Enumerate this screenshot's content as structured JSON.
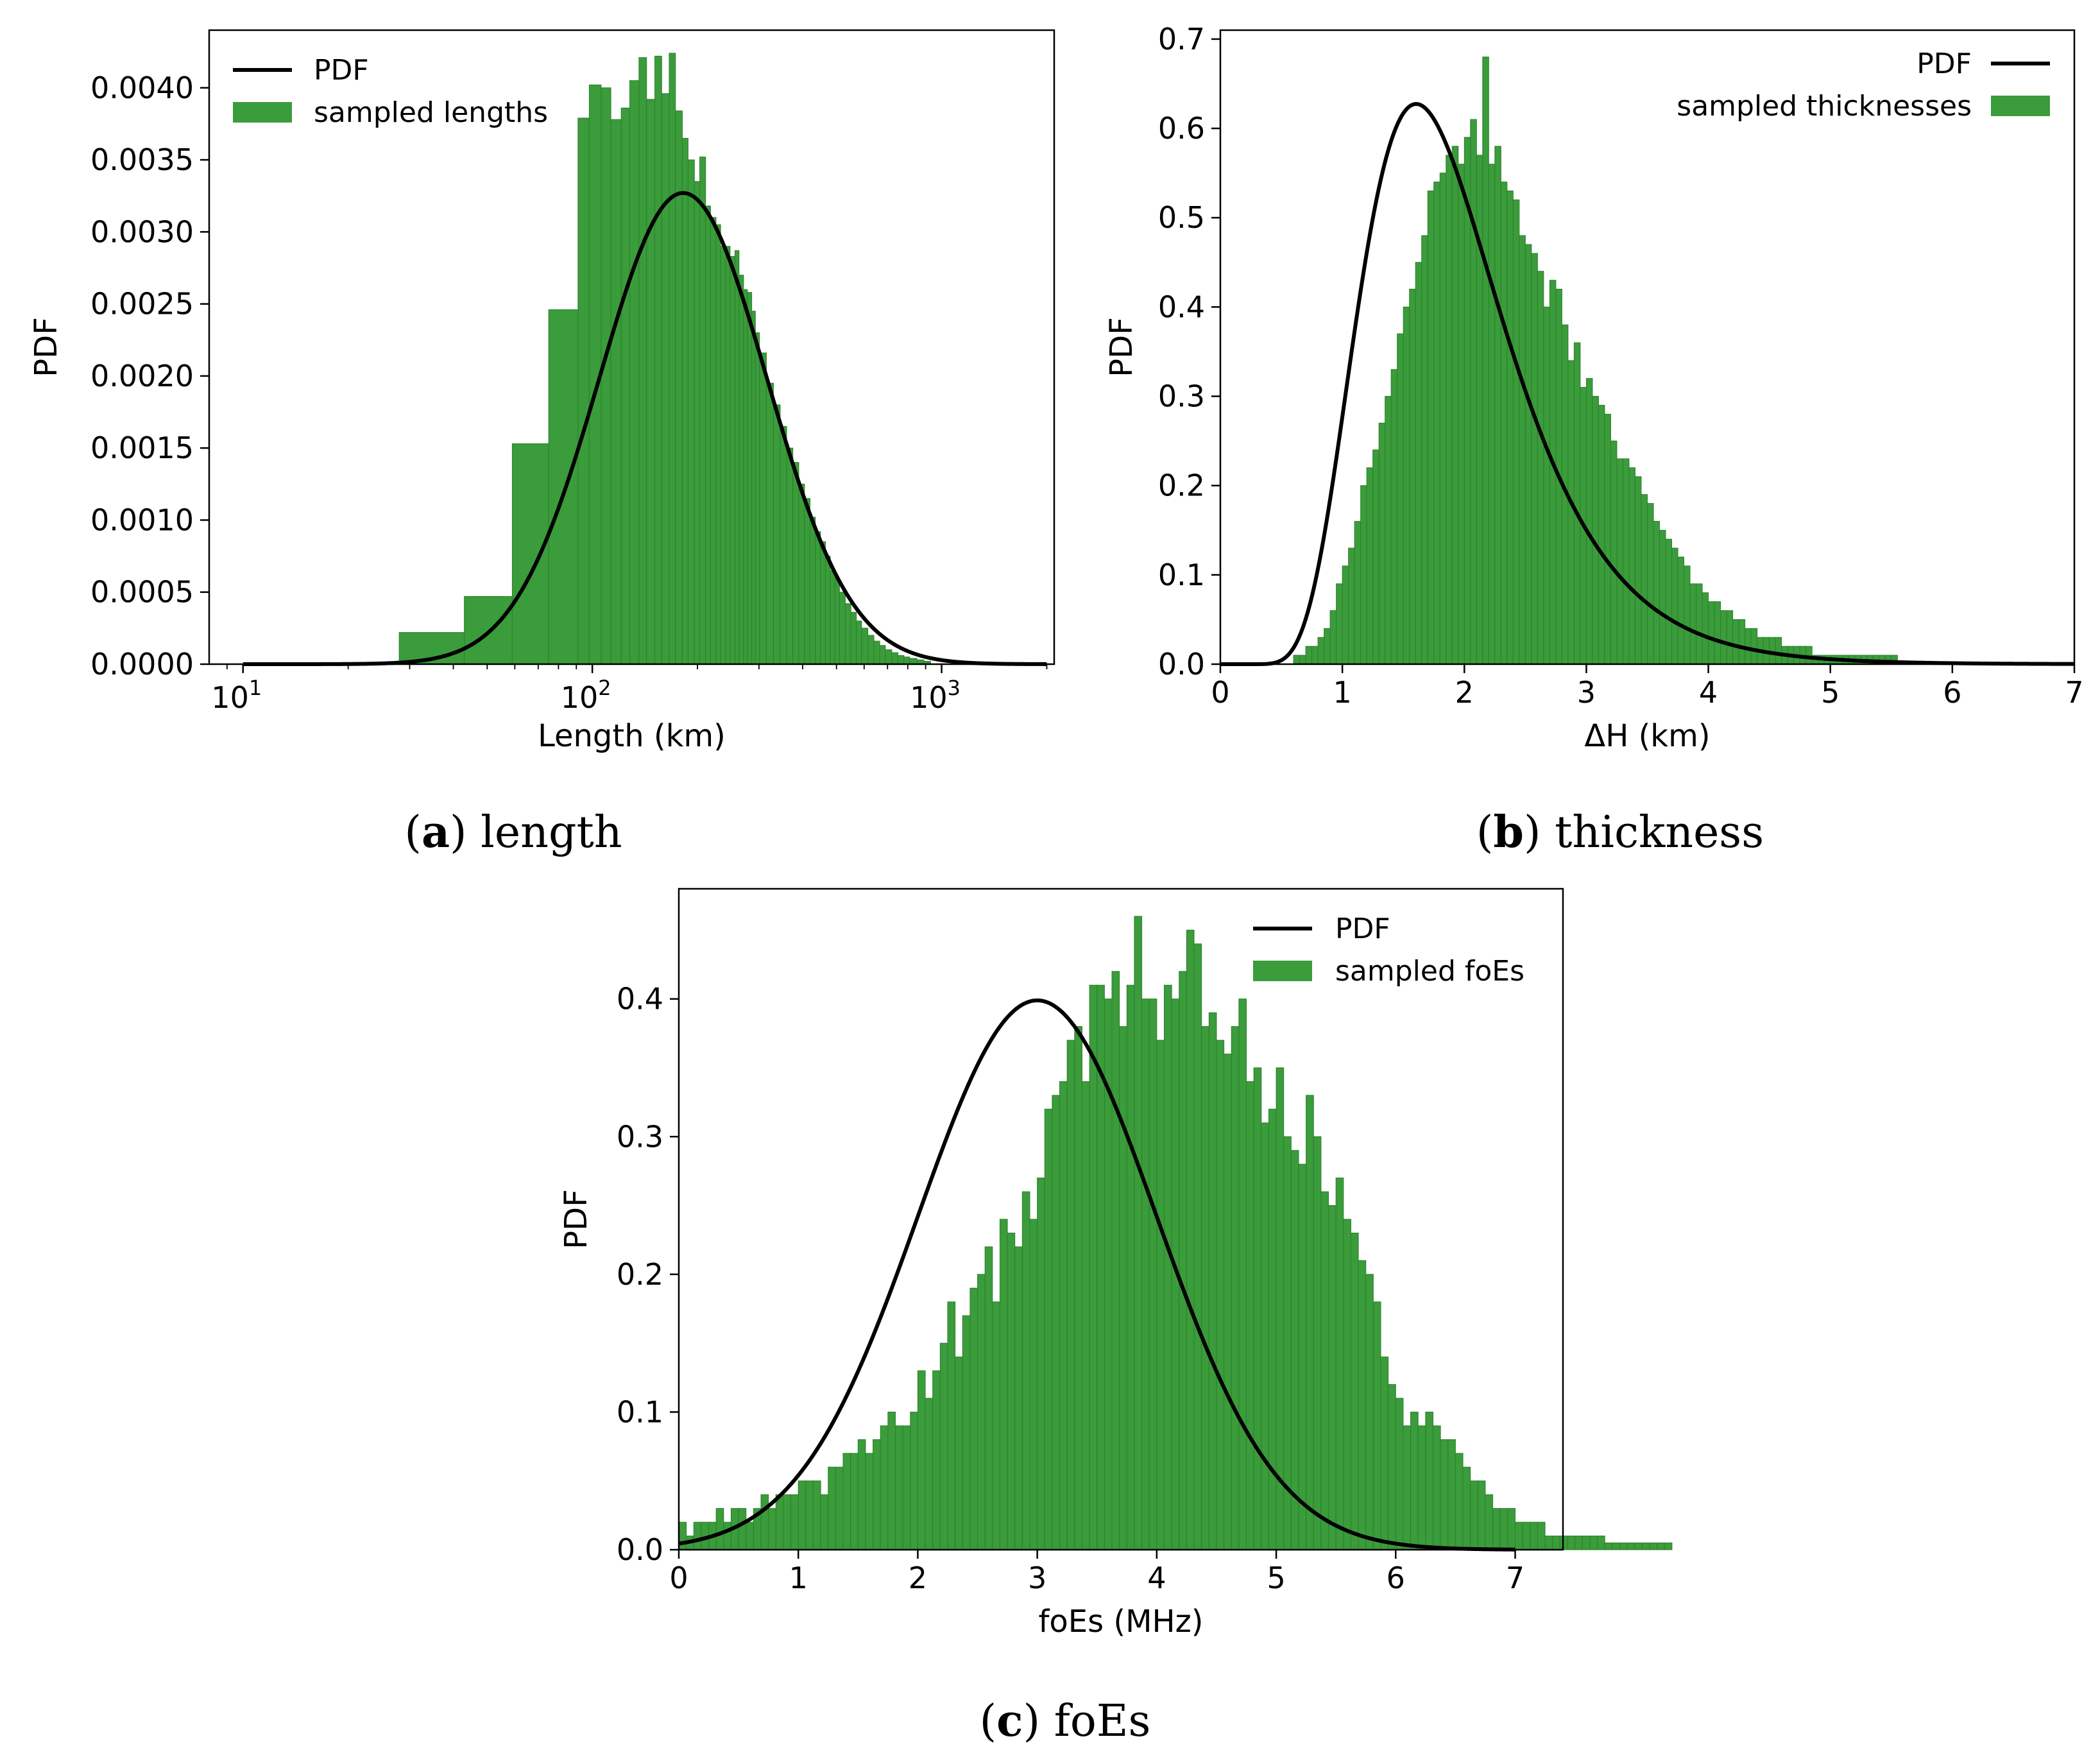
{
  "colors": {
    "bar": "#3a9c3a",
    "bar_edge": "#2d7f2d",
    "pdf_line": "#000000",
    "axis": "#000000"
  },
  "captions": [
    {
      "letter": "a",
      "text": "length"
    },
    {
      "letter": "b",
      "text": "thickness"
    },
    {
      "letter": "c",
      "text": "foEs"
    }
  ],
  "chart_data": [
    {
      "id": "length",
      "type": "bar",
      "xscale": "log",
      "xlabel": "Length (km)",
      "ylabel": "PDF",
      "xlim": [
        8,
        2100
      ],
      "ylim": [
        0,
        0.0044
      ],
      "xticks": [
        10,
        100,
        1000
      ],
      "xtick_labels": [
        {
          "base": "10",
          "exp": "1"
        },
        {
          "base": "10",
          "exp": "2"
        },
        {
          "base": "10",
          "exp": "3"
        }
      ],
      "yticks": [
        0,
        0.0005,
        0.001,
        0.0015,
        0.002,
        0.0025,
        0.003,
        0.0035,
        0.004
      ],
      "ytick_labels": [
        "0.0000",
        "0.0005",
        "0.0010",
        "0.0015",
        "0.0020",
        "0.0025",
        "0.0030",
        "0.0035",
        "0.0040"
      ],
      "legend": {
        "position": "upper-left",
        "line_label": "PDF",
        "bar_label": "sampled lengths"
      },
      "pdf": {
        "dist": "lognormal",
        "mu_log10": 2.26,
        "sigma_log10": 0.24,
        "peak": 0.00327,
        "xrange": [
          10,
          2000
        ]
      },
      "histogram": {
        "bin_edges": [
          28,
          43,
          59,
          75,
          91,
          98,
          106,
          113,
          121,
          128,
          136,
          143,
          151,
          158,
          166,
          173,
          181,
          188,
          196,
          203,
          211,
          218,
          226,
          233,
          241,
          248,
          256,
          263,
          271,
          278,
          286,
          293,
          301,
          315,
          330,
          345,
          360,
          375,
          390,
          405,
          420,
          435,
          450,
          465,
          480,
          495,
          510,
          530,
          550,
          570,
          590,
          615,
          640,
          665,
          690,
          720,
          750,
          780,
          810,
          850,
          890,
          930
        ],
        "values": [
          0.00022,
          0.00047,
          0.00153,
          0.00246,
          0.00379,
          0.00402,
          0.004,
          0.00378,
          0.00386,
          0.00405,
          0.00421,
          0.00392,
          0.00422,
          0.00396,
          0.00424,
          0.00384,
          0.00365,
          0.0035,
          0.00335,
          0.00352,
          0.00318,
          0.0031,
          0.00305,
          0.0029,
          0.0029,
          0.00283,
          0.00287,
          0.0027,
          0.0026,
          0.00258,
          0.00245,
          0.0023,
          0.00216,
          0.00195,
          0.0018,
          0.00165,
          0.0015,
          0.0014,
          0.00125,
          0.00115,
          0.00102,
          0.00092,
          0.00085,
          0.00075,
          0.00065,
          0.0006,
          0.0005,
          0.00042,
          0.00036,
          0.0003,
          0.00025,
          0.0002,
          0.00016,
          0.00013,
          0.0001,
          8e-05,
          6e-05,
          5e-05,
          4e-05,
          3e-05,
          2e-05
        ]
      }
    },
    {
      "id": "thickness",
      "type": "bar",
      "xscale": "linear",
      "xlabel": "ΔH (km)",
      "ylabel": "PDF",
      "xlim": [
        0,
        7
      ],
      "ylim": [
        0,
        0.71
      ],
      "xticks": [
        0,
        1,
        2,
        3,
        4,
        5,
        6,
        7
      ],
      "xtick_labels": [
        "0",
        "1",
        "2",
        "3",
        "4",
        "5",
        "6",
        "7"
      ],
      "yticks": [
        0,
        0.1,
        0.2,
        0.3,
        0.4,
        0.5,
        0.6,
        0.7
      ],
      "ytick_labels": [
        "0.0",
        "0.1",
        "0.2",
        "0.3",
        "0.4",
        "0.5",
        "0.6",
        "0.7"
      ],
      "legend": {
        "position": "upper-right",
        "line_label": "PDF",
        "bar_label": "sampled thicknesses"
      },
      "pdf": {
        "dist": "lognormal",
        "mu_ln": 0.61,
        "sigma_ln": 0.37,
        "peak": 0.61,
        "xrange": [
          0,
          7
        ]
      },
      "histogram": {
        "bin_start": 0.6,
        "bin_width": 0.05,
        "values": [
          0.01,
          0.01,
          0.02,
          0.02,
          0.03,
          0.04,
          0.06,
          0.09,
          0.11,
          0.13,
          0.16,
          0.2,
          0.22,
          0.24,
          0.27,
          0.3,
          0.33,
          0.37,
          0.4,
          0.42,
          0.45,
          0.48,
          0.53,
          0.54,
          0.55,
          0.57,
          0.58,
          0.56,
          0.59,
          0.61,
          0.57,
          0.68,
          0.56,
          0.58,
          0.54,
          0.53,
          0.52,
          0.48,
          0.47,
          0.46,
          0.44,
          0.4,
          0.43,
          0.42,
          0.38,
          0.34,
          0.36,
          0.31,
          0.32,
          0.3,
          0.29,
          0.28,
          0.25,
          0.23,
          0.23,
          0.22,
          0.21,
          0.19,
          0.18,
          0.16,
          0.15,
          0.14,
          0.13,
          0.12,
          0.11,
          0.09,
          0.09,
          0.08,
          0.07,
          0.07,
          0.06,
          0.06,
          0.05,
          0.05,
          0.04,
          0.04,
          0.03,
          0.03,
          0.03,
          0.03,
          0.02,
          0.02,
          0.02,
          0.02,
          0.02,
          0.01,
          0.01,
          0.01,
          0.01,
          0.01,
          0.01,
          0.01,
          0.01,
          0.01,
          0.01,
          0.01,
          0.01,
          0.01,
          0.01
        ]
      }
    },
    {
      "id": "foEs",
      "type": "bar",
      "xscale": "linear",
      "xlabel": "foEs (MHz)",
      "ylabel": "PDF",
      "xlim": [
        0,
        7.4
      ],
      "ylim": [
        0,
        0.48
      ],
      "xticks": [
        0,
        1,
        2,
        3,
        4,
        5,
        6,
        7
      ],
      "xtick_labels": [
        "0",
        "1",
        "2",
        "3",
        "4",
        "5",
        "6",
        "7"
      ],
      "yticks": [
        0,
        0.1,
        0.2,
        0.3,
        0.4
      ],
      "ytick_labels": [
        "0.0",
        "0.1",
        "0.2",
        "0.3",
        "0.4"
      ],
      "legend": {
        "position": "upper-right",
        "line_label": "PDF",
        "bar_label": "sampled foEs"
      },
      "pdf": {
        "dist": "normal",
        "mean": 3.0,
        "std": 1.0,
        "peak": 0.399,
        "xrange": [
          0,
          7
        ]
      },
      "histogram": {
        "bin_start": 0.0,
        "bin_width": 0.0625,
        "values": [
          0.02,
          0.01,
          0.02,
          0.02,
          0.02,
          0.03,
          0.02,
          0.03,
          0.03,
          0.02,
          0.03,
          0.04,
          0.03,
          0.04,
          0.04,
          0.04,
          0.05,
          0.05,
          0.05,
          0.04,
          0.06,
          0.06,
          0.07,
          0.07,
          0.08,
          0.07,
          0.08,
          0.09,
          0.1,
          0.09,
          0.09,
          0.1,
          0.13,
          0.11,
          0.13,
          0.15,
          0.18,
          0.14,
          0.17,
          0.19,
          0.2,
          0.22,
          0.18,
          0.24,
          0.23,
          0.22,
          0.26,
          0.24,
          0.27,
          0.32,
          0.33,
          0.34,
          0.37,
          0.38,
          0.34,
          0.41,
          0.41,
          0.4,
          0.42,
          0.38,
          0.41,
          0.46,
          0.4,
          0.4,
          0.37,
          0.41,
          0.4,
          0.42,
          0.45,
          0.44,
          0.38,
          0.39,
          0.37,
          0.36,
          0.38,
          0.4,
          0.34,
          0.35,
          0.31,
          0.32,
          0.35,
          0.3,
          0.29,
          0.28,
          0.33,
          0.3,
          0.26,
          0.25,
          0.27,
          0.24,
          0.23,
          0.21,
          0.2,
          0.18,
          0.14,
          0.12,
          0.11,
          0.09,
          0.1,
          0.09,
          0.1,
          0.09,
          0.08,
          0.08,
          0.07,
          0.06,
          0.05,
          0.05,
          0.04,
          0.03,
          0.03,
          0.03,
          0.02,
          0.02,
          0.02,
          0.02,
          0.01,
          0.01,
          0.01,
          0.01,
          0.01,
          0.01,
          0.01,
          0.01,
          0.005,
          0.005,
          0.005,
          0.005,
          0.005,
          0.005,
          0.005,
          0.005,
          0.005
        ]
      }
    }
  ]
}
